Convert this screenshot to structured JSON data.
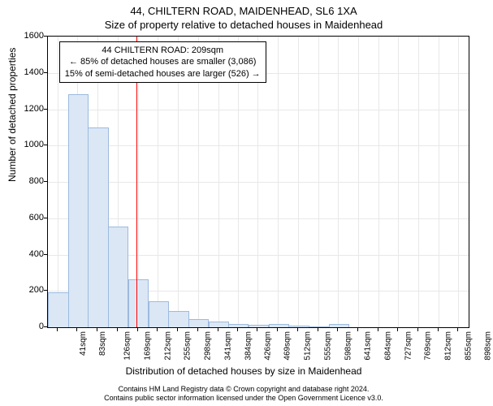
{
  "chart": {
    "type": "histogram",
    "title_line1": "44, CHILTERN ROAD, MAIDENHEAD, SL6 1XA",
    "title_line2": "Size of property relative to detached houses in Maidenhead",
    "xlabel": "Distribution of detached houses by size in Maidenhead",
    "ylabel": "Number of detached properties",
    "background_color": "#ffffff",
    "grid_color": "#e8e8e8",
    "border_color": "#000000",
    "bar_fill": "#dbe7f5",
    "bar_stroke": "#9dbade",
    "marker_color": "#ff0000",
    "title_fontsize": 13,
    "label_fontsize": 12,
    "tick_fontsize": 11,
    "ylim": [
      0,
      1600
    ],
    "ytick_step": 200,
    "yticks": [
      0,
      200,
      400,
      600,
      800,
      1000,
      1200,
      1400,
      1600
    ],
    "xtick_labels": [
      "41sqm",
      "83sqm",
      "126sqm",
      "169sqm",
      "212sqm",
      "255sqm",
      "298sqm",
      "341sqm",
      "384sqm",
      "426sqm",
      "469sqm",
      "512sqm",
      "555sqm",
      "598sqm",
      "641sqm",
      "684sqm",
      "727sqm",
      "769sqm",
      "812sqm",
      "855sqm",
      "898sqm"
    ],
    "bar_values": [
      190,
      1280,
      1095,
      550,
      260,
      140,
      85,
      40,
      25,
      15,
      9,
      14,
      4,
      1,
      15,
      0,
      0,
      0,
      0,
      0,
      0
    ],
    "marker_position": 209,
    "xmin": 20,
    "xmax": 920,
    "annotation": {
      "line1": "44 CHILTERN ROAD: 209sqm",
      "line2": "← 85% of detached houses are smaller (3,086)",
      "line3": "15% of semi-detached houses are larger (526) →"
    }
  },
  "footer": {
    "line1": "Contains HM Land Registry data © Crown copyright and database right 2024.",
    "line2": "Contains public sector information licensed under the Open Government Licence v3.0."
  }
}
